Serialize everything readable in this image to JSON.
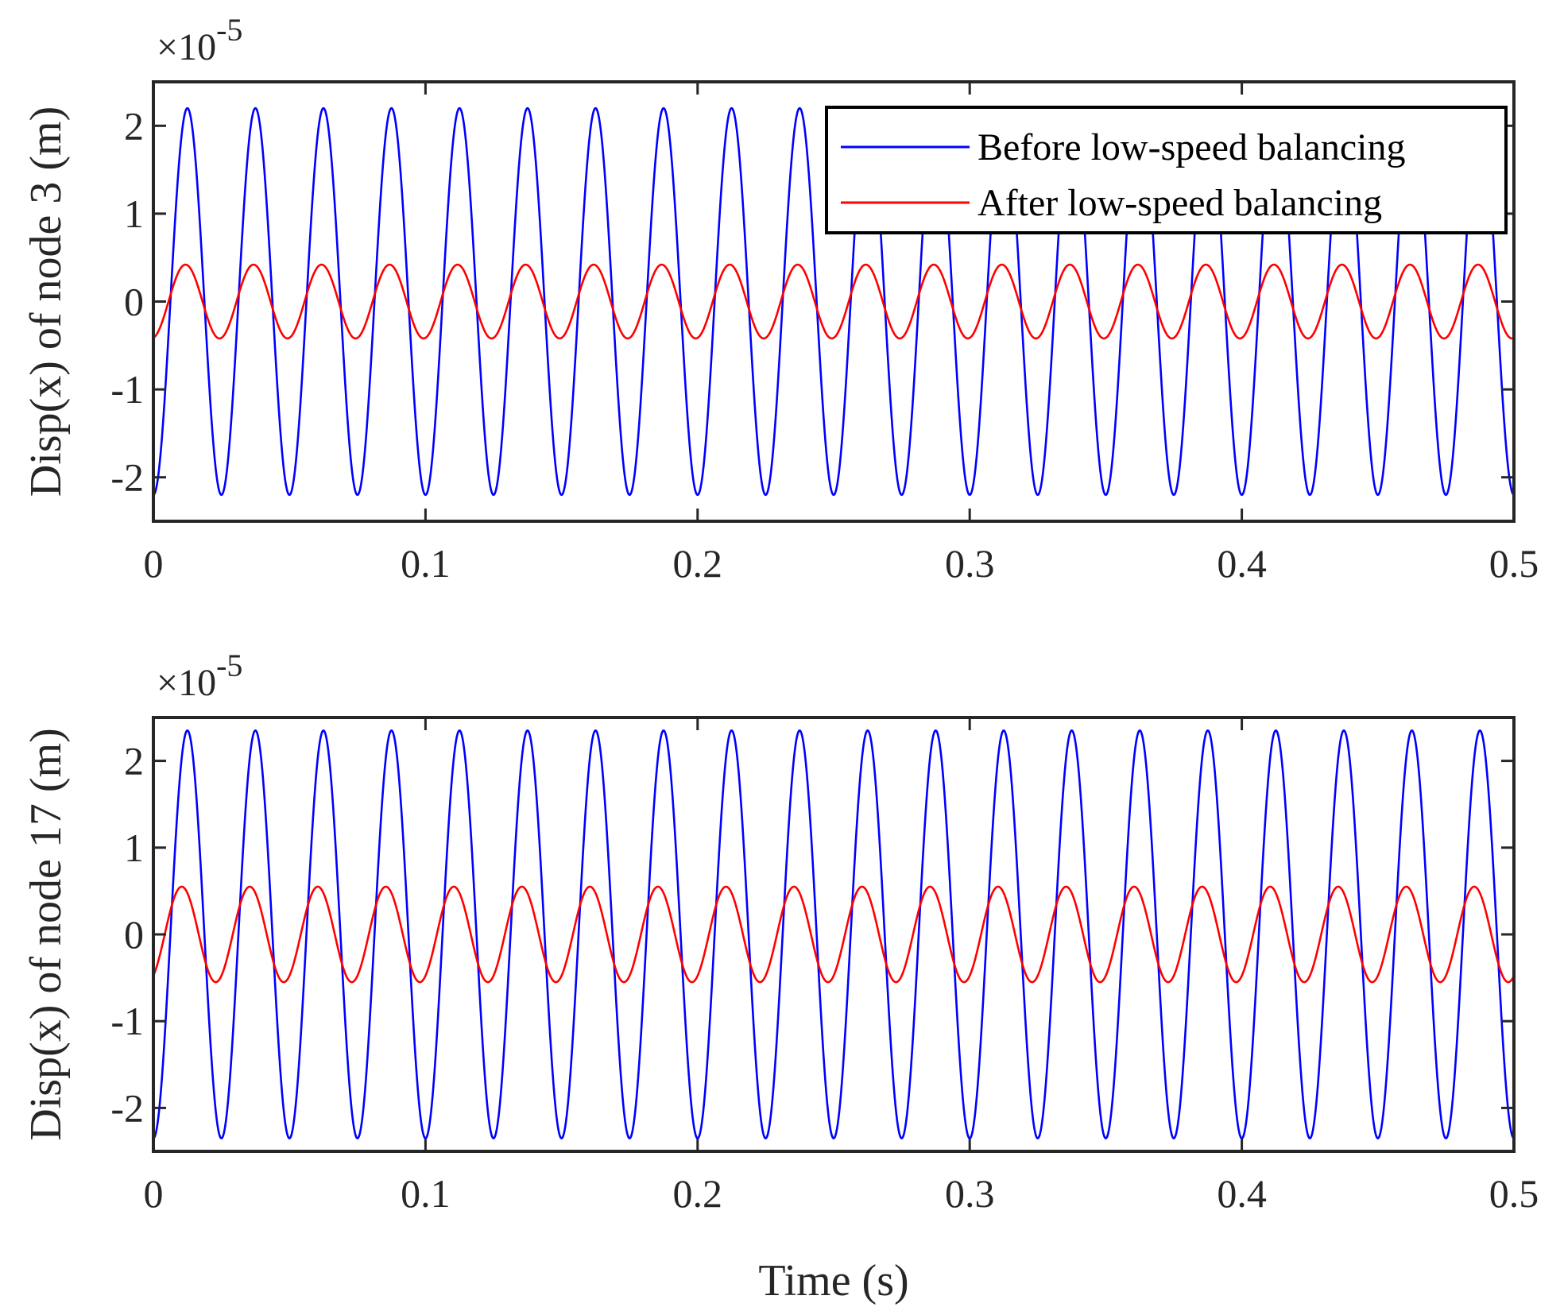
{
  "chart_data": [
    {
      "type": "line",
      "panel": "top",
      "xlabel": "",
      "ylabel": "Disp(x) of node 3 (m)",
      "y_exponent": "×10^-5",
      "y_exponent_base": "×10",
      "y_exponent_power": "-5",
      "xlim": [
        0,
        0.5
      ],
      "ylim": [
        -2.5,
        2.5
      ],
      "x_ticks": [
        "0",
        "0.1",
        "0.2",
        "0.3",
        "0.4",
        "0.5"
      ],
      "y_ticks": [
        "-2",
        "-1",
        "0",
        "1",
        "2"
      ],
      "grid": false,
      "legend": {
        "placement": "top-right",
        "entries": [
          "Before low-speed balancing",
          "After low-speed balancing"
        ]
      },
      "series": [
        {
          "name": "Before low-speed balancing",
          "color": "#0000ff",
          "amplitude": 2.2,
          "frequency_hz": 40,
          "phase_deg": -90,
          "t_start": 0,
          "t_end": 0.5
        },
        {
          "name": "After low-speed balancing",
          "color": "#ff0000",
          "amplitude": 0.42,
          "frequency_hz": 40,
          "phase_deg": -80,
          "t_start": 0,
          "t_end": 0.5
        }
      ]
    },
    {
      "type": "line",
      "panel": "bottom",
      "xlabel": "Time (s)",
      "ylabel": "Disp(x) of node 17 (m)",
      "y_exponent": "×10^-5",
      "y_exponent_base": "×10",
      "y_exponent_power": "-5",
      "xlim": [
        0,
        0.5
      ],
      "ylim": [
        -2.5,
        2.5
      ],
      "x_ticks": [
        "0",
        "0.1",
        "0.2",
        "0.3",
        "0.4",
        "0.5"
      ],
      "y_ticks": [
        "-2",
        "-1",
        "0",
        "1",
        "2"
      ],
      "grid": false,
      "series": [
        {
          "name": "Before low-speed balancing",
          "color": "#0000ff",
          "amplitude": 2.35,
          "frequency_hz": 40,
          "phase_deg": -90,
          "t_start": 0,
          "t_end": 0.5
        },
        {
          "name": "After low-speed balancing",
          "color": "#ff0000",
          "amplitude": 0.55,
          "frequency_hz": 40,
          "phase_deg": -60,
          "t_start": 0,
          "t_end": 0.5
        }
      ]
    }
  ]
}
